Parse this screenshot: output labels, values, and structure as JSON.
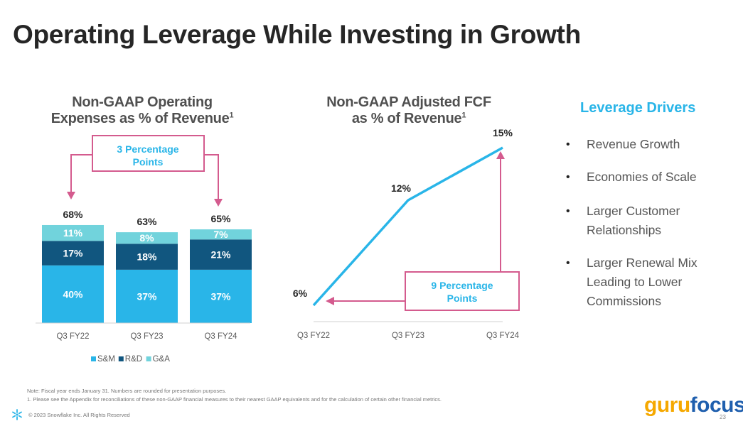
{
  "slide": {
    "title": "Operating Leverage While Investing in Growth",
    "page_number": "23"
  },
  "colors": {
    "sm": "#29B5E8",
    "rd": "#11567F",
    "ga": "#71D3DC",
    "accent_pink": "#D45B8E",
    "callout_text": "#29B5E8",
    "line": "#29B5E8"
  },
  "bar_chart_title": {
    "line1": "Non-GAAP Operating",
    "line2": "Expenses as % of Revenue",
    "sup": "1"
  },
  "line_chart_title": {
    "line1": "Non-GAAP Adjusted FCF",
    "line2": "as % of Revenue",
    "sup": "1"
  },
  "bar_callout": {
    "line1": "3 Percentage",
    "line2": "Points"
  },
  "line_callout": {
    "line1": "9 Percentage",
    "line2": "Points"
  },
  "chart_data": [
    {
      "type": "bar",
      "stacked": true,
      "title": "Non-GAAP Operating Expenses as % of Revenue",
      "categories": [
        "Q3 FY22",
        "Q3 FY23",
        "Q3 FY24"
      ],
      "series": [
        {
          "name": "S&M",
          "values": [
            40,
            37,
            37
          ],
          "labels": [
            "40%",
            "37%",
            "37%"
          ]
        },
        {
          "name": "R&D",
          "values": [
            17,
            18,
            21
          ],
          "labels": [
            "17%",
            "18%",
            "21%"
          ]
        },
        {
          "name": "G&A",
          "values": [
            11,
            8,
            7
          ],
          "labels": [
            "11%",
            "8%",
            "7%"
          ]
        }
      ],
      "totals": [
        68,
        63,
        65
      ],
      "total_labels": [
        "68%",
        "63%",
        "65%"
      ],
      "legend": [
        "S&M",
        "R&D",
        "G&A"
      ],
      "legend_position": "bottom",
      "annotation": "3 Percentage Points",
      "xlabel": "",
      "ylabel": "",
      "ylim": [
        0,
        70
      ],
      "grid": false
    },
    {
      "type": "line",
      "title": "Non-GAAP Adjusted FCF as % of Revenue",
      "categories": [
        "Q3 FY22",
        "Q3 FY23",
        "Q3 FY24"
      ],
      "series": [
        {
          "name": "Adjusted FCF %",
          "values": [
            6,
            12,
            15
          ],
          "labels": [
            "6%",
            "12%",
            "15%"
          ]
        }
      ],
      "annotation": "9 Percentage Points",
      "xlabel": "",
      "ylabel": "",
      "ylim": [
        4,
        16
      ],
      "grid": false
    }
  ],
  "drivers": {
    "title": "Leverage Drivers",
    "items": [
      {
        "line1": "Revenue Growth",
        "line2": "",
        "line3": ""
      },
      {
        "line1": "Economies of Scale",
        "line2": "",
        "line3": ""
      },
      {
        "line1": "Larger Customer",
        "line2": "Relationships",
        "line3": ""
      },
      {
        "line1": "Larger Renewal Mix",
        "line2": "Leading to Lower",
        "line3": "Commissions"
      }
    ]
  },
  "footer": {
    "note": "Note: Fiscal year ends January 31. Numbers are rounded for presentation purposes.",
    "footnote": "1.  Please see the Appendix for reconciliations of these non-GAAP financial measures to their nearest GAAP equivalents and for the calculation of certain other financial metrics.",
    "copyright": "© 2023 Snowflake Inc. All Rights Reserved",
    "logo_left": "guru",
    "logo_right": "focus",
    "brand_icon": "snowflake-icon"
  }
}
